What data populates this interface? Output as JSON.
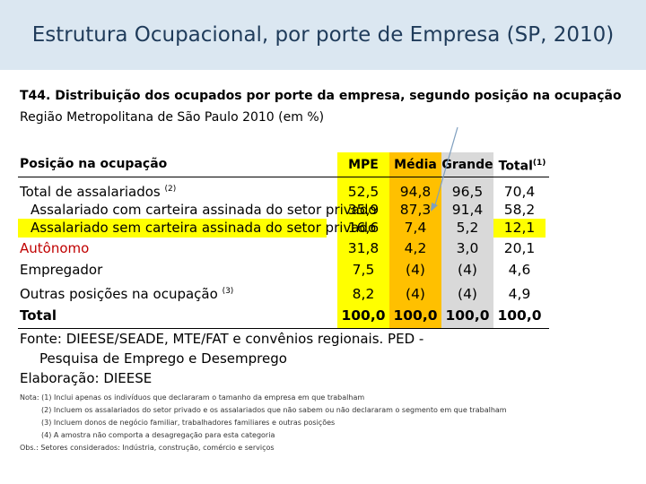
{
  "slide_title": "Estrutura Ocupacional, por porte de Empresa (SP, 2010)",
  "table_id": "T44",
  "table_caption": ". Distribuição dos ocupados por porte da empresa, segundo posição na ocupação",
  "table_subcaption": "Região Metropolitana de São Paulo 2010 (em %)",
  "header": {
    "row_label": "Posição na ocupação",
    "mpe": "MPE",
    "media": "Média",
    "grande": "Grande",
    "total": "Total",
    "total_sup": "(1)"
  },
  "rows": [
    {
      "label": "Total de assalariados",
      "sup": "(2)",
      "mpe": "52,5",
      "media": "94,8",
      "grande": "96,5",
      "total": "70,4"
    },
    {
      "label": "Assalariado com carteira assinada do setor privado",
      "mpe": "35,9",
      "media": "87,3",
      "grande": "91,4",
      "total": "58,2"
    },
    {
      "label": "Assalariado sem carteira assinada do setor privado",
      "mpe": "16,6",
      "media": "7,4",
      "grande": "5,2",
      "total": "12,1"
    },
    {
      "label": "Autônomo",
      "mpe": "31,8",
      "media": "4,2",
      "grande": "3,0",
      "total": "20,1"
    },
    {
      "label": "Empregador",
      "mpe": "7,5",
      "media": "(4)",
      "grande": "(4)",
      "total": "4,6"
    },
    {
      "label": "Outras posições na ocupação",
      "sup": "(3)",
      "mpe": "8,2",
      "media": "(4)",
      "grande": "(4)",
      "total": "4,9"
    },
    {
      "label": "Total",
      "mpe": "100,0",
      "media": "100,0",
      "grande": "100,0",
      "total": "100,0"
    }
  ],
  "source_line1": "Fonte: DIEESE/SEADE, MTE/FAT e convênios regionais. PED -",
  "source_line2": "Pesquisa de Emprego e Desemprego",
  "elaboration": "Elaboração: DIEESE",
  "notes": [
    "Nota: (1) Inclui apenas os indivíduos que declararam o tamanho da empresa em que trabalham",
    "(2) Incluem os assalariados do setor privado e os assalariados que não sabem ou não declararam o segmento em que trabalham",
    "(3) Incluem donos de negócio familiar, trabalhadores familiares e outras posições",
    "(4) A amostra não comporta a desagregação para esta categoria"
  ],
  "obs": "Obs.: Setores considerados: Indústria, construção, comércio e serviços",
  "colors": {
    "title_band": "#dbe7f1",
    "mpe_col": "#ffff00",
    "media_col": "#ffc000",
    "grande_col": "#d9d9d9",
    "highlight_row": "#ffff00",
    "red_text": "#c00000"
  }
}
